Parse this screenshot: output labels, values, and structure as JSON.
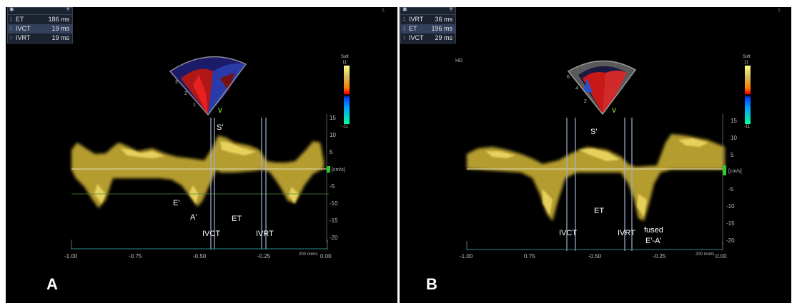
{
  "panels": [
    {
      "letter": "A",
      "corner": "L",
      "table": [
        {
          "idx": "1",
          "name": "ET",
          "value": "186 ms"
        },
        {
          "idx": "1",
          "name": "IVCT",
          "value": "19 ms"
        },
        {
          "idx": "1",
          "name": "IVRT",
          "value": "19 ms"
        }
      ],
      "colorbar": {
        "top": "Soft",
        "max": "11",
        "min": "-11"
      },
      "depth_labels": [
        "3",
        "2",
        "1"
      ],
      "v_marker": "V",
      "wave_labels": {
        "s": "S'",
        "e": "E'",
        "a": "A'",
        "ivct": "IVCT",
        "et": "ET",
        "ivrt": "IVRT"
      },
      "yticks": [
        "15",
        "10",
        "5",
        "[cm/s]",
        "-5",
        "-10",
        "-15",
        "-20"
      ],
      "xticks": [
        "-1.00",
        "-0.75",
        "-0.50",
        "-0.25",
        "0.00"
      ],
      "speed": "200 mm/s"
    },
    {
      "letter": "B",
      "corner": "L",
      "hd": "HD",
      "table": [
        {
          "idx": "1",
          "name": "IVRT",
          "value": "36 ms"
        },
        {
          "idx": "1",
          "name": "ET",
          "value": "196 ms"
        },
        {
          "idx": "1",
          "name": "IVCT",
          "value": "29 ms"
        }
      ],
      "colorbar": {
        "top": "Soft",
        "max": "11",
        "min": "-11"
      },
      "depth_labels": [
        "6",
        "4",
        "2"
      ],
      "v_marker": "V",
      "wave_labels": {
        "s": "S'",
        "et": "ET",
        "ivct": "IVCT",
        "ivrt": "IVRT",
        "fused1": "fused",
        "fused2": "E'-A'"
      },
      "yticks": [
        "15",
        "10",
        "5",
        "[cm/s]",
        "-5",
        "-10",
        "-15",
        "-20"
      ],
      "xticks": [
        "-1.00",
        "0.75",
        "-0.50",
        "-0.25",
        "0.00"
      ],
      "speed": "200 mm/s"
    }
  ]
}
